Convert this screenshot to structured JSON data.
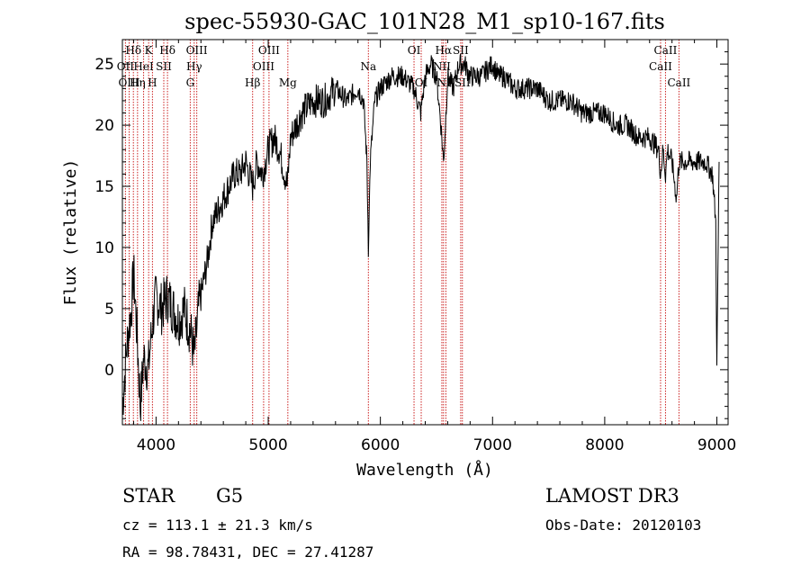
{
  "chart_data": {
    "type": "line",
    "title": "spec-55930-GAC_101N28_M1_sp10-167.fits",
    "xlabel": "Wavelength (Å)",
    "ylabel": "Flux (relative)",
    "xlim": [
      3700,
      9100
    ],
    "ylim": [
      -4.5,
      27
    ],
    "xticks": [
      4000,
      5000,
      6000,
      7000,
      8000,
      9000
    ],
    "yticks": [
      0,
      5,
      10,
      15,
      20,
      25
    ],
    "grid": false,
    "series": [
      {
        "name": "flux",
        "x": [
          3700,
          3740,
          3780,
          3800,
          3830,
          3860,
          3890,
          3930,
          3970,
          4000,
          4050,
          4100,
          4150,
          4200,
          4250,
          4280,
          4310,
          4340,
          4380,
          4420,
          4460,
          4500,
          4550,
          4600,
          4650,
          4700,
          4750,
          4800,
          4861,
          4900,
          4950,
          5000,
          5050,
          5100,
          5170,
          5200,
          5250,
          5300,
          5400,
          5500,
          5600,
          5700,
          5800,
          5850,
          5880,
          5893,
          5910,
          5950,
          6000,
          6100,
          6200,
          6300,
          6360,
          6400,
          6450,
          6500,
          6540,
          6563,
          6580,
          6600,
          6650,
          6700,
          6750,
          6800,
          6900,
          7000,
          7050,
          7100,
          7200,
          7300,
          7400,
          7500,
          7600,
          7700,
          7800,
          7900,
          8000,
          8100,
          8200,
          8300,
          8400,
          8480,
          8498,
          8520,
          8542,
          8560,
          8600,
          8640,
          8662,
          8700,
          8800,
          8900,
          8960,
          8990,
          9000,
          9020
        ],
        "y": [
          -3,
          2,
          5,
          8,
          3,
          -3,
          1,
          0,
          4,
          6,
          5,
          6,
          5,
          4,
          5,
          4,
          3,
          1,
          5,
          7,
          9,
          12,
          13,
          14,
          15,
          16,
          16,
          17,
          15,
          17,
          16,
          18,
          19,
          18,
          15,
          19,
          20,
          21,
          22,
          22,
          23,
          22,
          23,
          22,
          17,
          10,
          17,
          22,
          23,
          24,
          24,
          23,
          21,
          24,
          25,
          24,
          20,
          17,
          20,
          24,
          23,
          25,
          25,
          24,
          24,
          25,
          24,
          24,
          23,
          23,
          23,
          22,
          22,
          22,
          21,
          21,
          21,
          20,
          20,
          19,
          19,
          18,
          16,
          18,
          16,
          18,
          17,
          14,
          17,
          17,
          17,
          17,
          16,
          12,
          0,
          17
        ]
      }
    ],
    "spectral_lines": [
      {
        "label": "Hδ",
        "wavelength": 3798,
        "row": 0
      },
      {
        "label": "OII",
        "wavelength": 3727,
        "row": 1
      },
      {
        "label": "OIII",
        "wavelength": 3760,
        "row": 2
      },
      {
        "label": "HeI",
        "wavelength": 3889,
        "row": 1
      },
      {
        "label": "Hη",
        "wavelength": 3835,
        "row": 2
      },
      {
        "label": "K",
        "wavelength": 3934,
        "row": 0
      },
      {
        "label": "SII",
        "wavelength": 4069,
        "row": 1
      },
      {
        "label": "H",
        "wavelength": 3968,
        "row": 2
      },
      {
        "label": "Hδ",
        "wavelength": 4102,
        "row": 0
      },
      {
        "label": "OIII",
        "wavelength": 4363,
        "row": 0
      },
      {
        "label": "Hγ",
        "wavelength": 4340,
        "row": 1
      },
      {
        "label": "G",
        "wavelength": 4305,
        "row": 2
      },
      {
        "label": "OIII",
        "wavelength": 5007,
        "row": 0
      },
      {
        "label": "OIII",
        "wavelength": 4959,
        "row": 1
      },
      {
        "label": "Hβ",
        "wavelength": 4861,
        "row": 2
      },
      {
        "label": "Mg",
        "wavelength": 5175,
        "row": 2
      },
      {
        "label": "Na",
        "wavelength": 5893,
        "row": 1
      },
      {
        "label": "OI",
        "wavelength": 6300,
        "row": 0
      },
      {
        "label": "OI",
        "wavelength": 6364,
        "row": 2
      },
      {
        "label": "Hα",
        "wavelength": 6563,
        "row": 0
      },
      {
        "label": "SII",
        "wavelength": 6716,
        "row": 0
      },
      {
        "label": "NII",
        "wavelength": 6548,
        "row": 1
      },
      {
        "label": "NII",
        "wavelength": 6584,
        "row": 2
      },
      {
        "label": "SII",
        "wavelength": 6731,
        "row": 2
      },
      {
        "label": "CaII",
        "wavelength": 8542,
        "row": 0
      },
      {
        "label": "CaII",
        "wavelength": 8498,
        "row": 1
      },
      {
        "label": "CaII",
        "wavelength": 8662,
        "row": 2
      }
    ]
  },
  "info": {
    "class": "STAR",
    "subclass": "G5",
    "survey": "LAMOST DR3",
    "cz": "cz = 113.1 ± 21.3 km/s",
    "obs_date": "Obs-Date: 20120103",
    "coords": "RA =  98.78431, DEC =  27.41287"
  },
  "colors": {
    "line_marker": "#cc2222",
    "spectrum": "#000000",
    "axis": "#000000"
  }
}
